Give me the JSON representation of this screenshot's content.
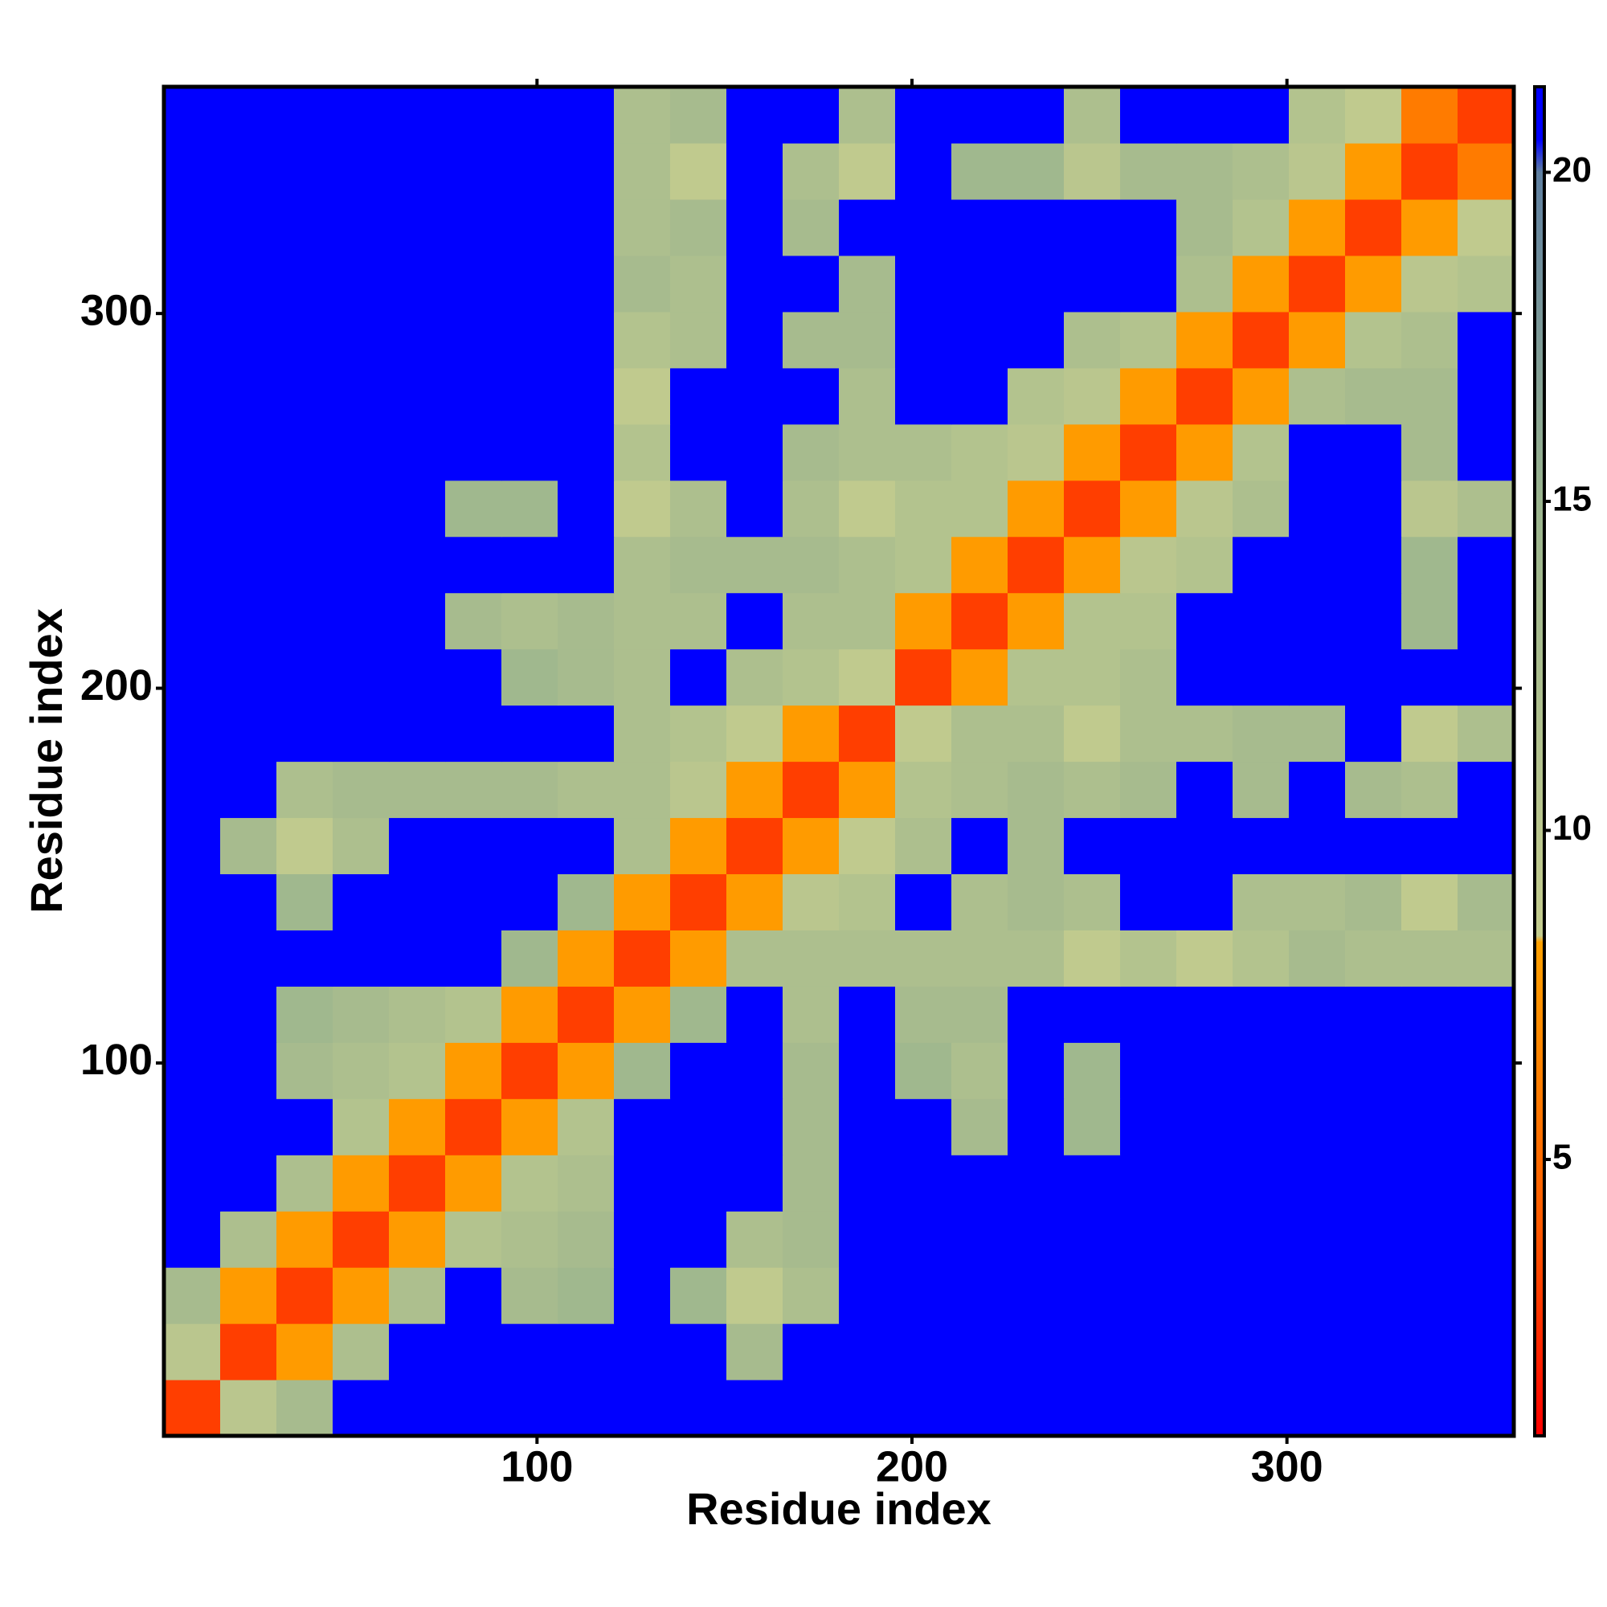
{
  "chart_data": {
    "type": "heatmap",
    "xlabel": "Residue index",
    "ylabel": "Residue index",
    "xbins": [
      0.5,
      15.5,
      30.5,
      45.5,
      60.5,
      75.5,
      90.5,
      105.5,
      120.5,
      135.5,
      150.5,
      165.5,
      180.5,
      195.5,
      210.5,
      225.5,
      240.5,
      255.5,
      270.5,
      285.5,
      300.5,
      315.5,
      330.5,
      345.5,
      360.5
    ],
    "ybins": [
      0.5,
      15.5,
      30.5,
      45.5,
      60.5,
      75.5,
      90.5,
      105.5,
      120.5,
      135.5,
      150.5,
      165.5,
      180.5,
      195.5,
      210.5,
      225.5,
      240.5,
      255.5,
      270.5,
      285.5,
      300.5,
      315.5,
      330.5,
      345.5,
      360.5
    ],
    "xlim": [
      0.5,
      360.5
    ],
    "ylim": [
      0.5,
      360.5
    ],
    "xticks": [
      100,
      200,
      300
    ],
    "yticks": [
      100,
      200,
      300
    ],
    "z": [
      [
        3,
        10,
        13,
        21,
        21,
        21,
        21,
        21,
        21,
        21,
        21,
        21,
        21,
        21,
        21,
        21,
        21,
        21,
        21,
        21,
        21,
        21,
        21,
        21
      ],
      [
        10,
        3,
        8,
        12,
        21,
        21,
        21,
        21,
        21,
        21,
        13,
        21,
        21,
        21,
        21,
        21,
        21,
        21,
        21,
        21,
        21,
        21,
        21,
        21
      ],
      [
        13,
        8,
        3,
        8,
        12,
        21,
        13,
        14,
        21,
        14,
        9,
        12,
        21,
        21,
        21,
        21,
        21,
        21,
        21,
        21,
        21,
        21,
        21,
        21
      ],
      [
        21,
        12,
        8,
        3,
        8,
        11,
        12,
        13,
        21,
        21,
        12,
        13,
        21,
        21,
        21,
        21,
        21,
        21,
        21,
        21,
        21,
        21,
        21,
        21
      ],
      [
        21,
        21,
        12,
        8,
        3,
        8,
        11,
        12,
        21,
        21,
        21,
        13,
        21,
        21,
        21,
        21,
        21,
        21,
        21,
        21,
        21,
        21,
        21,
        21
      ],
      [
        21,
        21,
        21,
        11,
        8,
        3,
        8,
        11,
        21,
        21,
        21,
        13,
        21,
        21,
        13,
        21,
        14,
        21,
        21,
        21,
        21,
        21,
        21,
        21
      ],
      [
        21,
        21,
        13,
        12,
        11,
        8,
        3,
        8,
        14,
        21,
        21,
        13,
        21,
        14,
        12,
        21,
        14,
        21,
        21,
        21,
        21,
        21,
        21,
        21
      ],
      [
        21,
        21,
        14,
        13,
        12,
        11,
        8,
        3,
        8,
        14,
        21,
        12,
        21,
        13,
        13,
        21,
        21,
        21,
        21,
        21,
        21,
        21,
        21,
        21
      ],
      [
        21,
        21,
        21,
        21,
        21,
        21,
        14,
        8,
        3,
        8,
        12,
        12,
        12,
        12,
        12,
        12,
        9,
        11,
        9,
        11,
        13,
        12,
        12,
        12
      ],
      [
        21,
        21,
        14,
        21,
        21,
        21,
        21,
        14,
        8,
        3,
        8,
        10,
        11,
        21,
        12,
        13,
        12,
        21,
        21,
        12,
        12,
        13,
        9,
        13
      ],
      [
        21,
        13,
        9,
        12,
        21,
        21,
        21,
        21,
        12,
        8,
        3,
        8,
        9,
        12,
        21,
        13,
        21,
        21,
        21,
        21,
        21,
        21,
        21,
        21
      ],
      [
        21,
        21,
        12,
        13,
        13,
        13,
        13,
        12,
        12,
        10,
        8,
        3,
        8,
        11,
        12,
        13,
        12,
        13,
        21,
        13,
        21,
        13,
        12,
        21
      ],
      [
        21,
        21,
        21,
        21,
        21,
        21,
        21,
        21,
        12,
        11,
        9,
        8,
        3,
        9,
        12,
        12,
        9,
        12,
        12,
        13,
        13,
        21,
        9,
        12
      ],
      [
        21,
        21,
        21,
        21,
        21,
        21,
        14,
        13,
        12,
        21,
        12,
        11,
        9,
        3,
        8,
        11,
        11,
        12,
        21,
        21,
        21,
        21,
        21,
        21
      ],
      [
        21,
        21,
        21,
        21,
        21,
        13,
        12,
        13,
        12,
        12,
        21,
        12,
        12,
        8,
        3,
        8,
        11,
        11,
        21,
        21,
        21,
        21,
        14,
        21
      ],
      [
        21,
        21,
        21,
        21,
        21,
        21,
        21,
        21,
        12,
        13,
        13,
        13,
        12,
        11,
        8,
        3,
        8,
        10,
        11,
        21,
        21,
        21,
        14,
        21
      ],
      [
        21,
        21,
        21,
        21,
        21,
        14,
        14,
        21,
        9,
        12,
        21,
        12,
        9,
        11,
        11,
        8,
        3,
        8,
        10,
        12,
        21,
        21,
        10,
        12
      ],
      [
        21,
        21,
        21,
        21,
        21,
        21,
        21,
        21,
        11,
        21,
        21,
        13,
        12,
        12,
        11,
        10,
        8,
        3,
        8,
        11,
        21,
        21,
        13,
        21
      ],
      [
        21,
        21,
        21,
        21,
        21,
        21,
        21,
        21,
        9,
        21,
        21,
        21,
        12,
        21,
        21,
        11,
        10,
        8,
        3,
        8,
        12,
        13,
        13,
        21
      ],
      [
        21,
        21,
        21,
        21,
        21,
        21,
        21,
        21,
        11,
        12,
        21,
        13,
        13,
        21,
        21,
        21,
        12,
        11,
        8,
        3,
        8,
        11,
        12,
        21
      ],
      [
        21,
        21,
        21,
        21,
        21,
        21,
        21,
        21,
        13,
        12,
        21,
        21,
        13,
        21,
        21,
        21,
        21,
        21,
        12,
        8,
        3,
        8,
        10,
        11
      ],
      [
        21,
        21,
        21,
        21,
        21,
        21,
        21,
        21,
        12,
        13,
        21,
        13,
        21,
        21,
        21,
        21,
        21,
        21,
        13,
        11,
        8,
        3,
        8,
        9
      ],
      [
        21,
        21,
        21,
        21,
        21,
        21,
        21,
        21,
        12,
        9,
        21,
        12,
        9,
        21,
        14,
        14,
        10,
        13,
        13,
        12,
        10,
        8,
        3,
        6
      ],
      [
        21,
        21,
        21,
        21,
        21,
        21,
        21,
        21,
        12,
        13,
        21,
        21,
        12,
        21,
        21,
        21,
        12,
        21,
        21,
        21,
        11,
        9,
        6,
        3
      ]
    ],
    "colorscale": [
      {
        "value": 0.8,
        "color": "#ff0000"
      },
      {
        "value": 4,
        "color": "#ff5a00"
      },
      {
        "value": 8.3,
        "color": "#ffa000"
      },
      {
        "value": 8.4,
        "color": "#c4cc8e"
      },
      {
        "value": 15,
        "color": "#9ab48e"
      },
      {
        "value": 20,
        "color": "#5f7fa0"
      },
      {
        "value": 20.5,
        "color": "#0000ff"
      }
    ],
    "colorbar": {
      "lim": [
        0.8,
        21.3
      ],
      "ticks": [
        5,
        10,
        15,
        20
      ]
    }
  }
}
